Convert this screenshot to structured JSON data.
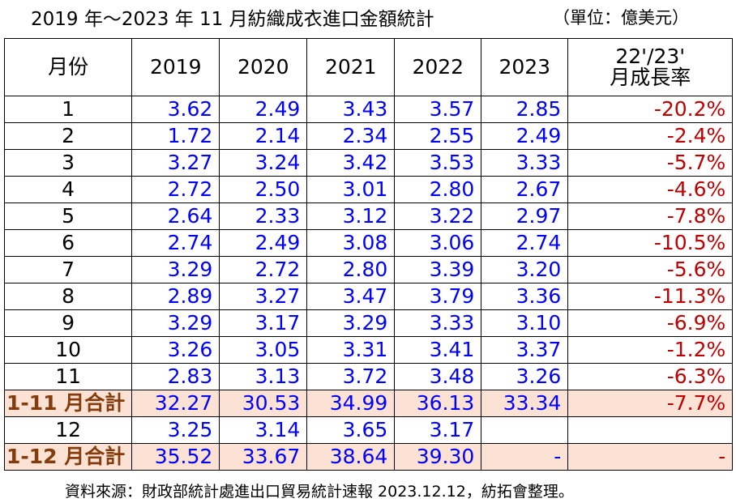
{
  "header": {
    "title": "2019 年～2023 年 11 月紡織成衣進口金額統計",
    "unit": "（單位：億美元）"
  },
  "table": {
    "columns": [
      "月份",
      "2019",
      "2020",
      "2021",
      "2022",
      "2023",
      [
        "22'/23'",
        "月成長率"
      ]
    ],
    "rows": [
      [
        "1",
        "3.62",
        "2.49",
        "3.43",
        "3.57",
        "2.85",
        "-20.2%"
      ],
      [
        "2",
        "1.72",
        "2.14",
        "2.34",
        "2.55",
        "2.49",
        "-2.4%"
      ],
      [
        "3",
        "3.27",
        "3.24",
        "3.42",
        "3.53",
        "3.33",
        "-5.7%"
      ],
      [
        "4",
        "2.72",
        "2.50",
        "3.01",
        "2.80",
        "2.67",
        "-4.6%"
      ],
      [
        "5",
        "2.64",
        "2.33",
        "3.12",
        "3.22",
        "2.97",
        "-7.8%"
      ],
      [
        "6",
        "2.74",
        "2.49",
        "3.08",
        "3.06",
        "2.74",
        "-10.5%"
      ],
      [
        "7",
        "3.29",
        "2.72",
        "2.80",
        "3.39",
        "3.20",
        "-5.6%"
      ],
      [
        "8",
        "2.89",
        "3.27",
        "3.47",
        "3.79",
        "3.36",
        "-11.3%"
      ],
      [
        "9",
        "3.29",
        "3.17",
        "3.29",
        "3.33",
        "3.10",
        "-6.9%"
      ],
      [
        "10",
        "3.26",
        "3.05",
        "3.31",
        "3.41",
        "3.37",
        "-1.2%"
      ],
      [
        "11",
        "2.83",
        "3.13",
        "3.72",
        "3.48",
        "3.26",
        "-6.3%"
      ],
      [
        "1-11 月合計",
        "32.27",
        "30.53",
        "34.99",
        "36.13",
        "33.34",
        "-7.7%"
      ],
      [
        "12",
        "3.25",
        "3.14",
        "3.65",
        "3.17"
      ],
      [
        "1-12 月合計",
        "35.52",
        "33.67",
        "38.64",
        "39.30",
        "-",
        "-"
      ]
    ],
    "total_rows": [
      11,
      13
    ]
  },
  "footer": {
    "source": "資料來源：財政部統計處進出口貿易統計速報 2023.12.12，紡拓會整理。"
  }
}
